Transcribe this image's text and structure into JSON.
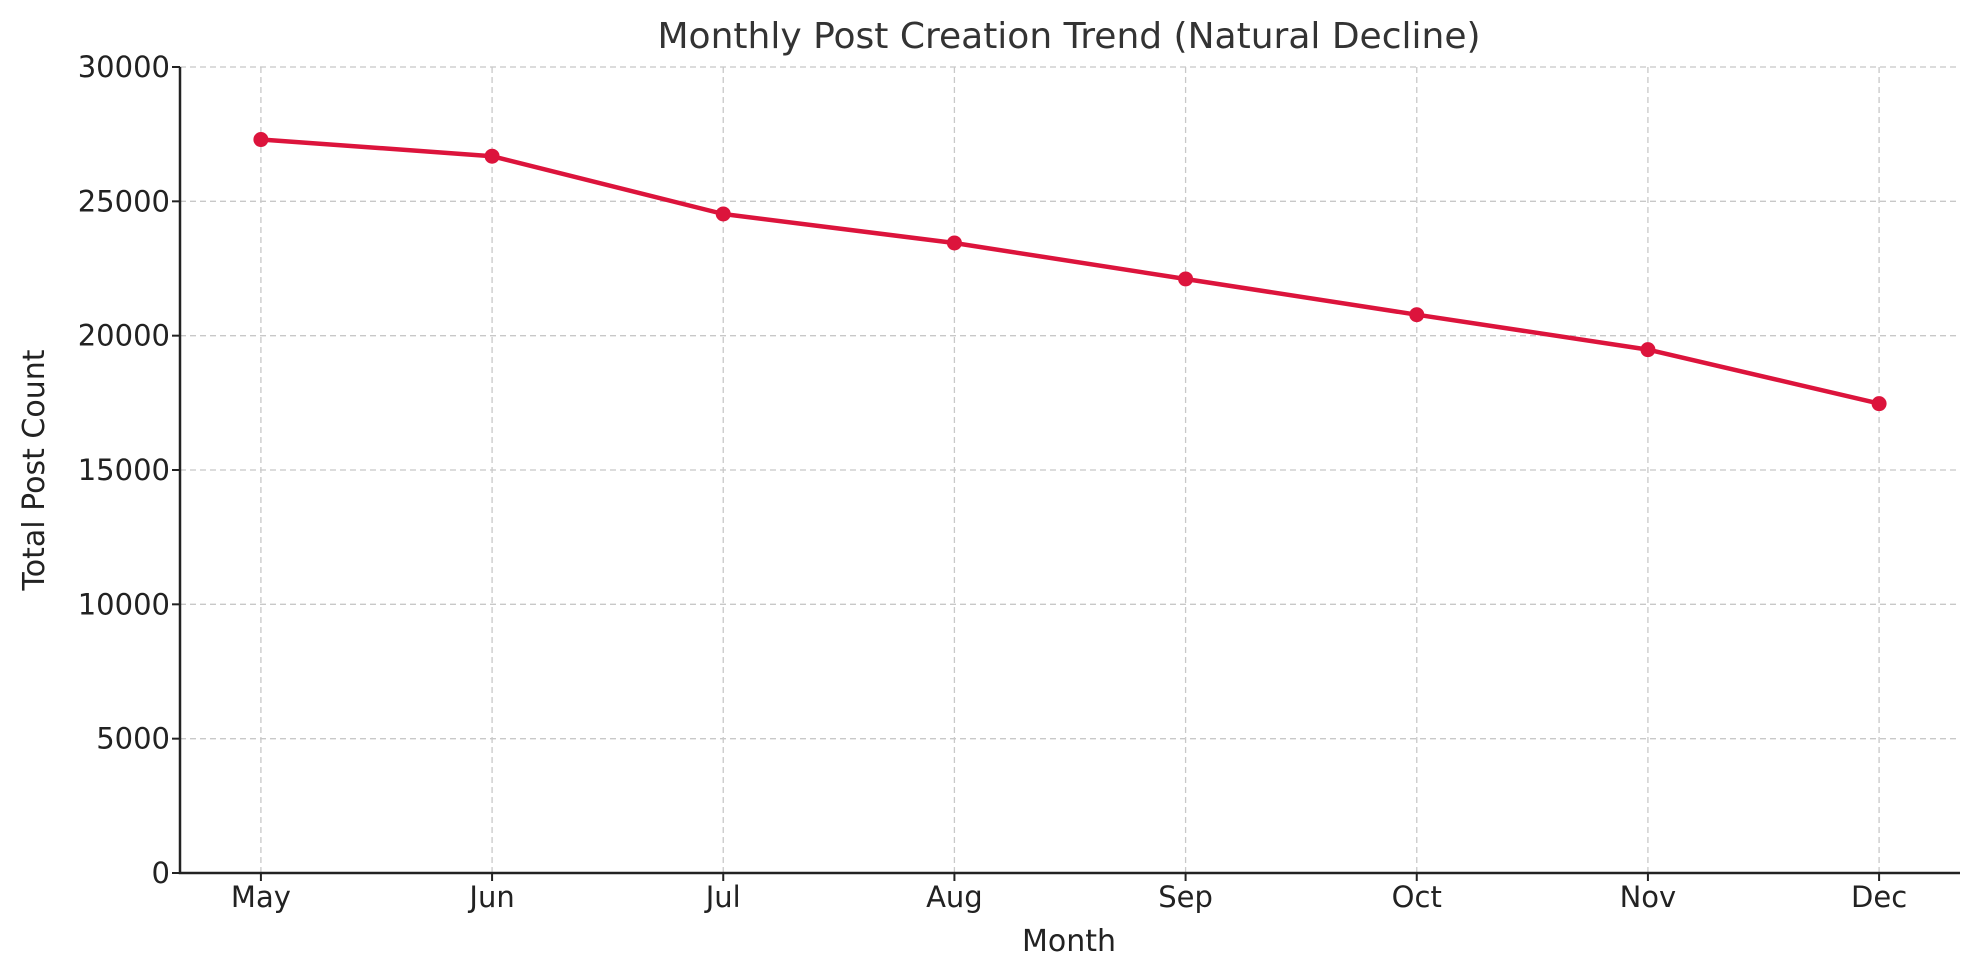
{
  "chart_data": {
    "type": "line",
    "title": "Monthly Post Creation Trend (Natural Decline)",
    "xlabel": "Month",
    "ylabel": "Total Post Count",
    "categories": [
      "May",
      "Jun",
      "Jul",
      "Aug",
      "Sep",
      "Oct",
      "Nov",
      "Dec"
    ],
    "series": [
      {
        "name": "Total Post Count",
        "values": [
          27300,
          26680,
          24530,
          23450,
          22110,
          20780,
          19480,
          17470
        ],
        "color": "#dc143c",
        "marker": "circle"
      }
    ],
    "ylim": [
      0,
      30000
    ],
    "yticks": [
      0,
      5000,
      10000,
      15000,
      20000,
      25000,
      30000
    ],
    "ytick_labels": [
      "0",
      "5000",
      "10000",
      "15000",
      "20000",
      "25000",
      "30000"
    ],
    "grid": true,
    "legend": "none"
  }
}
